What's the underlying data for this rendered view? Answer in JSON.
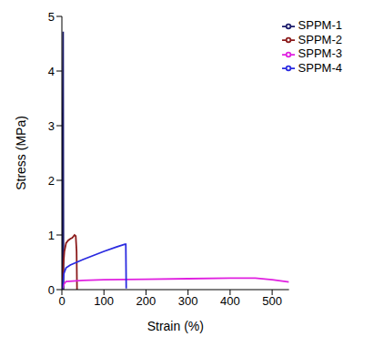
{
  "chart_data": {
    "type": "line",
    "x_label": "Strain (%)",
    "y_label": "Stress (MPa)",
    "xlim": [
      0,
      540
    ],
    "xticks": [
      0,
      100,
      200,
      300,
      400,
      500
    ],
    "ylim": [
      0,
      5
    ],
    "yticks": [
      0,
      1,
      2,
      3,
      4,
      5
    ],
    "legend": "upper right",
    "series": [
      {
        "name": "SPPM-1",
        "color": "#1c1c6b",
        "x": [
          0,
          1,
          2,
          3,
          3.5,
          4
        ],
        "values": [
          0,
          1.5,
          3.2,
          4.72,
          2,
          0
        ]
      },
      {
        "name": "SPPM-2",
        "color": "#8b1a1a",
        "x": [
          0,
          3,
          6,
          10,
          15,
          20,
          25,
          30,
          33,
          35,
          36
        ],
        "values": [
          0,
          0.4,
          0.7,
          0.85,
          0.9,
          0.93,
          0.95,
          1.0,
          0.98,
          0.7,
          0
        ]
      },
      {
        "name": "SPPM-3",
        "color": "#e020e0",
        "x": [
          0,
          5,
          10,
          50,
          100,
          200,
          300,
          400,
          460,
          500,
          540
        ],
        "values": [
          0,
          0.1,
          0.15,
          0.17,
          0.18,
          0.19,
          0.2,
          0.21,
          0.21,
          0.18,
          0.14
        ]
      },
      {
        "name": "SPPM-4",
        "color": "#2a2ae0",
        "x": [
          0,
          5,
          10,
          20,
          50,
          100,
          130,
          150,
          152,
          153
        ],
        "values": [
          0,
          0.3,
          0.4,
          0.45,
          0.55,
          0.7,
          0.78,
          0.83,
          0.83,
          0.02
        ]
      }
    ]
  }
}
